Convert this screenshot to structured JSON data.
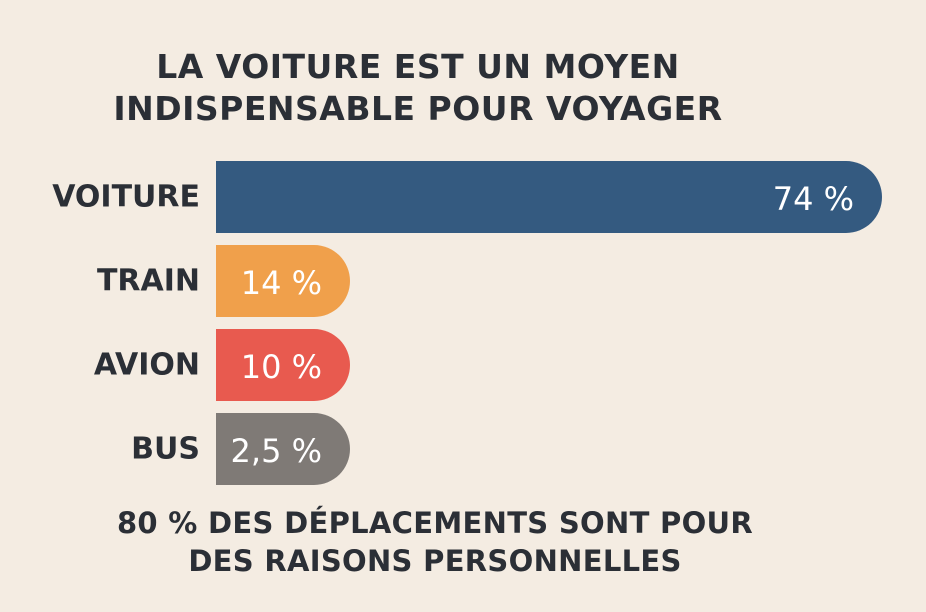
{
  "chart_data": {
    "type": "bar",
    "orientation": "horizontal",
    "title_lines": [
      "LA VOITURE EST UN MOYEN",
      "INDISPENSABLE POUR VOYAGER"
    ],
    "categories": [
      "VOITURE",
      "TRAIN",
      "AVION",
      "BUS"
    ],
    "values": [
      74,
      14,
      10,
      2.5
    ],
    "value_labels": [
      "74 %",
      "14 %",
      "10 %",
      "2,5 %"
    ],
    "colors": [
      "#345a80",
      "#f0a04b",
      "#e85a4f",
      "#7f7a76"
    ],
    "unit": "%",
    "grid": false,
    "legend": "none"
  },
  "footer_lines": [
    "80 % DES DÉPLACEMENTS SONT POUR",
    "DES RAISONS PERSONNELLES"
  ]
}
